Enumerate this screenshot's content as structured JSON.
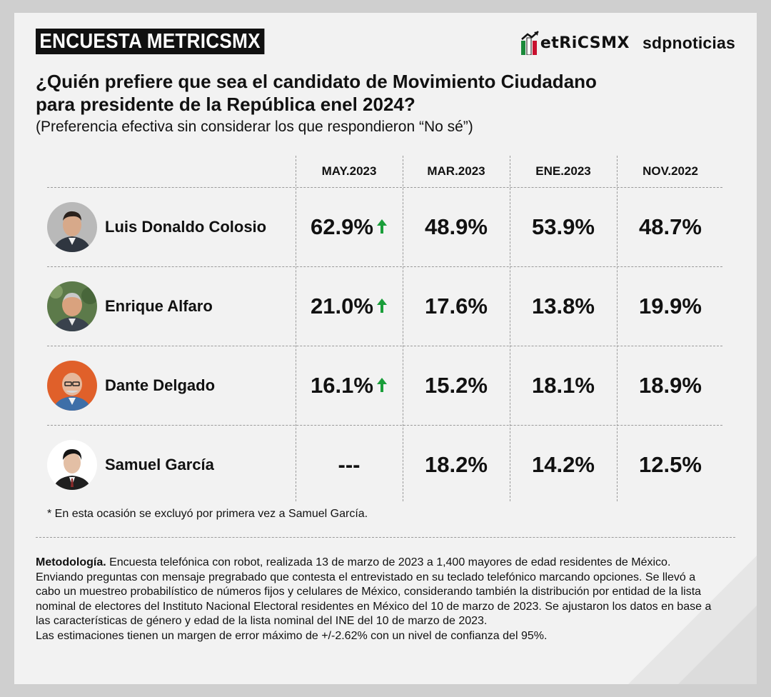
{
  "header": {
    "badge": "ENCUESTA METRICSMX",
    "logo_metrics": "etRiCSMX",
    "logo_sdp": "sdpnoticias"
  },
  "title": {
    "line1": "¿Quién prefiere que sea el candidato de Movimiento Ciudadano",
    "line2": "para presidente de la República enel 2024?",
    "subtitle": "(Preferencia efectiva sin considerar los que respondieron “No sé”)"
  },
  "table": {
    "columns": [
      "MAY.2023",
      "MAR.2023",
      "ENE.2023",
      "NOV.2022"
    ],
    "rows": [
      {
        "name": "Luis Donaldo Colosio",
        "values": [
          "62.9%",
          "48.9%",
          "53.9%",
          "48.7%"
        ],
        "trend": "up"
      },
      {
        "name": "Enrique Alfaro",
        "values": [
          "21.0%",
          "17.6%",
          "13.8%",
          "19.9%"
        ],
        "trend": "up"
      },
      {
        "name": "Dante Delgado",
        "values": [
          "16.1%",
          "15.2%",
          "18.1%",
          "18.9%"
        ],
        "trend": "up"
      },
      {
        "name": "Samuel García",
        "values": [
          "---",
          "18.2%",
          "14.2%",
          "12.5%"
        ],
        "trend": "none"
      }
    ]
  },
  "note": "* En esta ocasión se excluyó por primera vez a Samuel García.",
  "methodology": {
    "label": "Metodología.",
    "text": "Encuesta telefónica con robot, realizada 13 de marzo de 2023 a 1,400 mayores de edad residentes de México. Enviando preguntas con mensaje pregrabado que contesta el entrevistado en su teclado telefónico marcando opciones. Se llevó a cabo un muestreo probabilístico de números fijos y celulares de México, considerando también la distribución por entidad de la lista nominal de electores del Instituto Nacional Electoral residentes en México del 10 de marzo de 2023. Se ajustaron los datos en base a las características de género y edad de la lista nominal del INE del 10 de marzo de 2023.",
    "margin": "Las estimaciones tienen un margen de error máximo de +/-2.62% con un nivel de confianza del 95%."
  },
  "colors": {
    "arrow_up": "#1a9e3a",
    "badge_bg": "#111111",
    "card_bg": "#f2f2f2"
  }
}
